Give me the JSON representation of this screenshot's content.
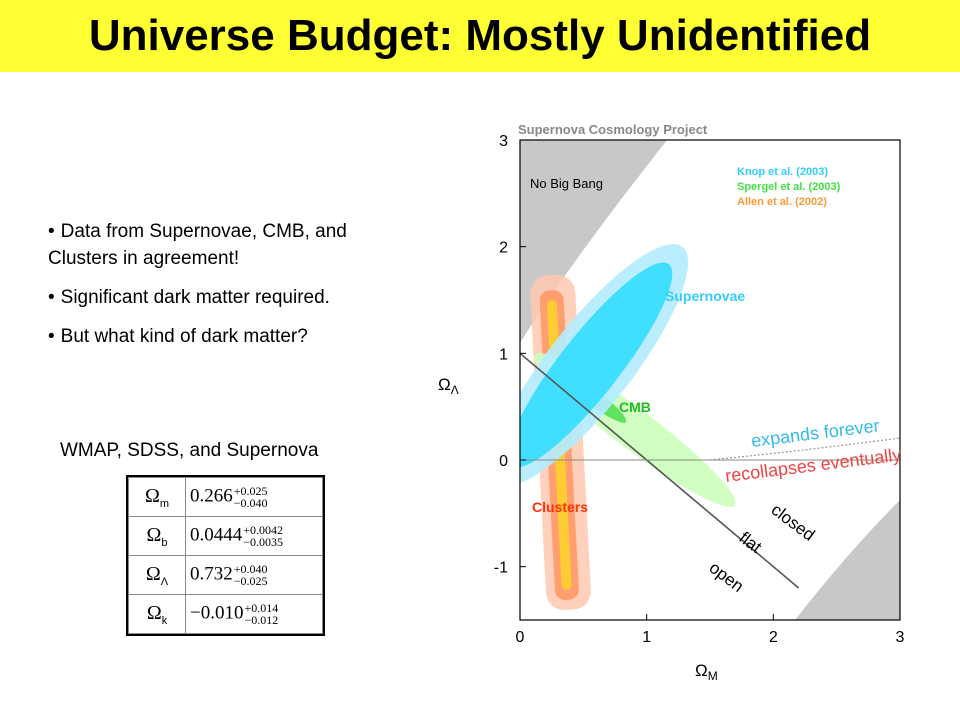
{
  "title": "Universe Budget: Mostly Unidentified",
  "bullets": [
    "Data from Supernovae, CMB, and Clusters in agreement!",
    "Significant dark matter required.",
    "But what kind of dark matter?"
  ],
  "caption": "WMAP, SDSS, and Supernova",
  "params": [
    {
      "symbol": "Ω",
      "sub": "m",
      "value": "0.266",
      "plus": "+0.025",
      "minus": "−0.040"
    },
    {
      "symbol": "Ω",
      "sub": "b",
      "value": "0.0444",
      "plus": "+0.0042",
      "minus": "−0.0035"
    },
    {
      "symbol": "Ω",
      "sub": "Λ",
      "value": "0.732",
      "plus": "+0.040",
      "minus": "−0.025"
    },
    {
      "symbol": "Ω",
      "sub": "k",
      "value": "−0.010",
      "plus": "+0.014",
      "minus": "−0.012"
    }
  ],
  "chart_data": {
    "type": "contour",
    "title": "Supernova Cosmology Project",
    "xlabel": "Ω_M",
    "ylabel": "Ω_Λ",
    "xlim": [
      0,
      3
    ],
    "ylim": [
      -1.5,
      3
    ],
    "xticks": [
      0,
      1,
      2,
      3
    ],
    "yticks": [
      -1,
      0,
      1,
      2,
      3
    ],
    "legend": [
      {
        "label": "Knop et al. (2003)",
        "color": "#33ccff"
      },
      {
        "label": "Spergel et al. (2003)",
        "color": "#44dd44"
      },
      {
        "label": "Allen et al. (2002)",
        "color": "#ff9933"
      }
    ],
    "regions": [
      {
        "name": "Supernovae",
        "color": "#33ccff",
        "center": [
          0.6,
          1.25
        ]
      },
      {
        "name": "CMB",
        "color": "#44dd44",
        "center": [
          0.9,
          0.45
        ]
      },
      {
        "name": "Clusters",
        "color": "#ff6633",
        "center": [
          0.3,
          0.5
        ]
      },
      {
        "name": "No Big Bang",
        "color": "#c8c8c8"
      }
    ],
    "lines": [
      {
        "name": "flat",
        "points": [
          [
            0,
            1
          ],
          [
            2.2,
            -1.2
          ]
        ]
      }
    ],
    "annotations": [
      "expands forever",
      "recollapses eventually",
      "closed",
      "flat",
      "open"
    ],
    "legend_position": "top-right"
  }
}
